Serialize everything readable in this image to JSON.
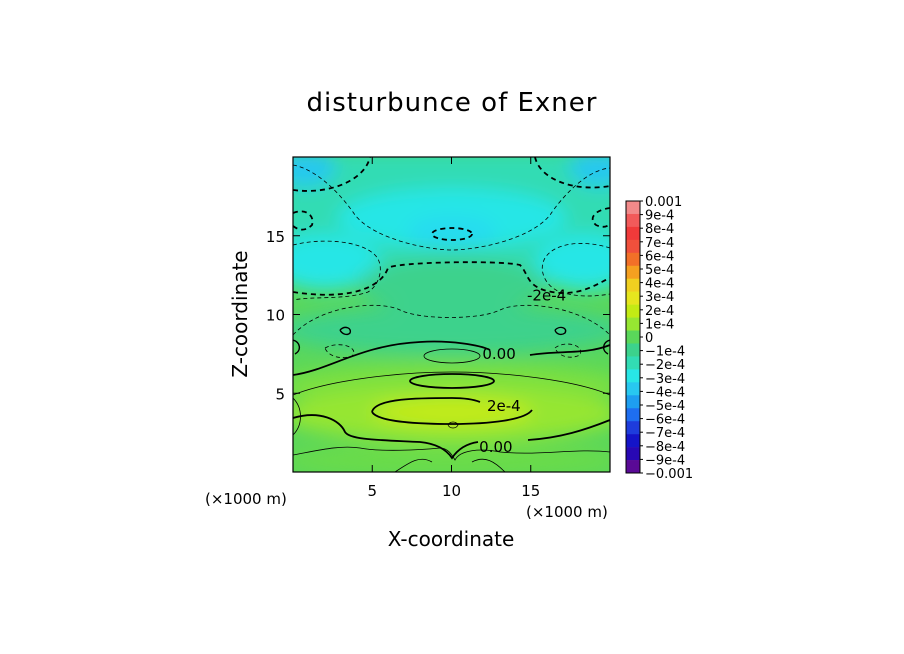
{
  "chart_data": {
    "type": "heatmap",
    "title": "disturbunce of Exner",
    "xlabel": "X-coordinate",
    "ylabel": "Z-coordinate",
    "x_unit": "(×1000 m)",
    "z_unit": "(×1000 m)",
    "xlim": [
      0,
      20
    ],
    "ylim": [
      0,
      20
    ],
    "x_ticks": [
      5,
      10,
      15
    ],
    "y_ticks": [
      5,
      10,
      15
    ],
    "contour_labels": [
      {
        "text": "-2e-4",
        "x": 16.0,
        "z": 11.2
      },
      {
        "text": "0.00",
        "x": 13.0,
        "z": 7.5
      },
      {
        "text": "2e-4",
        "x": 13.3,
        "z": 4.2
      },
      {
        "text": "0.00",
        "x": 12.8,
        "z": 1.6
      }
    ],
    "colorbar": {
      "min": -0.001,
      "max": 0.001,
      "step": 0.0001,
      "labels": [
        "0.001",
        "9e-4",
        "8e-4",
        "7e-4",
        "6e-4",
        "5e-4",
        "4e-4",
        "3e-4",
        "2e-4",
        "1e-4",
        "0",
        "−1e-4",
        "−2e-4",
        "−3e-4",
        "−4e-4",
        "−5e-4",
        "−6e-4",
        "−7e-4",
        "−8e-4",
        "−9e-4",
        "−0.001"
      ],
      "colors": [
        "#f28a8a",
        "#f25a5a",
        "#f03a3a",
        "#f0503c",
        "#f27028",
        "#f5a020",
        "#f0d020",
        "#e6e61e",
        "#c3eb14",
        "#96e632",
        "#5ad75a",
        "#3cd28c",
        "#32dcb4",
        "#28e6e6",
        "#28c8f0",
        "#1e9ef0",
        "#1e6ef0",
        "#1e3cdc",
        "#1414c8",
        "#2808b4",
        "#5a0a96"
      ]
    }
  }
}
